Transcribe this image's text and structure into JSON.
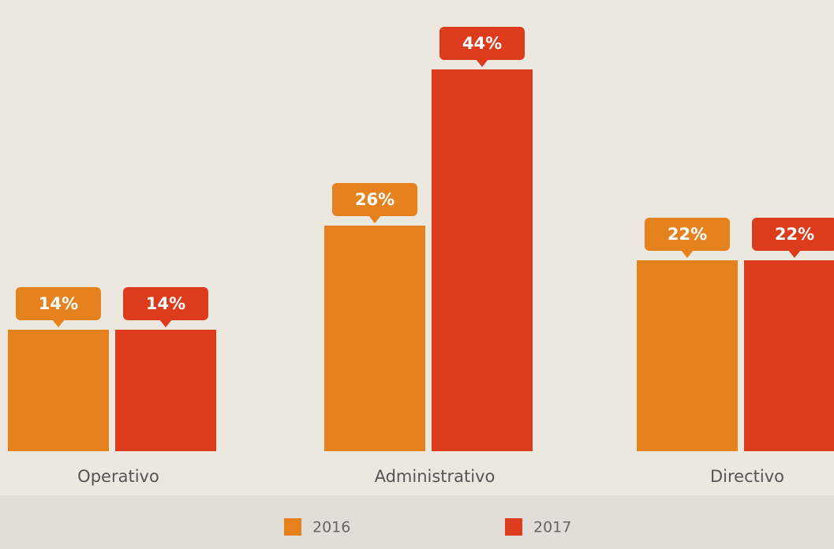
{
  "chart_data": {
    "type": "bar",
    "categories": [
      "Operativo",
      "Administrativo",
      "Directivo"
    ],
    "series": [
      {
        "name": "2016",
        "color": "#e5821e",
        "values": [
          14,
          26,
          22
        ],
        "value_labels": [
          "14%",
          "26%",
          "22%"
        ]
      },
      {
        "name": "2017",
        "color": "#dd3c1c",
        "values": [
          14,
          44,
          22
        ],
        "value_labels": [
          "14%",
          "44%",
          "22%"
        ]
      }
    ]
  }
}
